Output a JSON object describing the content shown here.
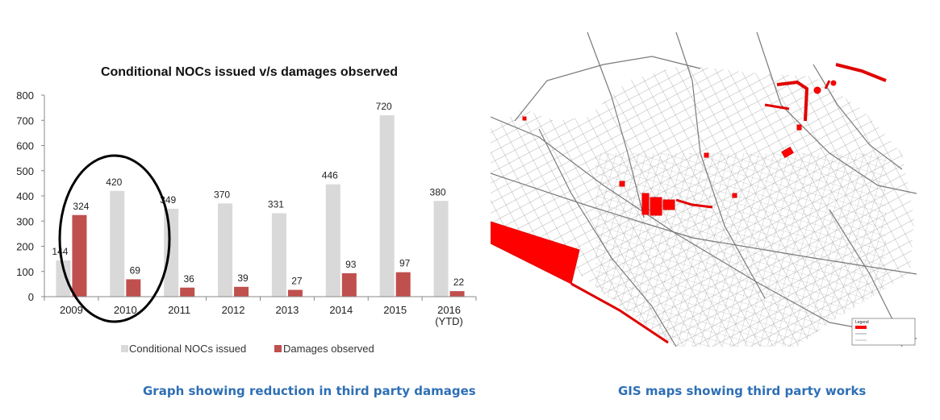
{
  "chart_data": {
    "type": "bar",
    "title": "Conditional NOCs issued v/s damages observed",
    "categories": [
      "2009",
      "2010",
      "2011",
      "2012",
      "2013",
      "2014",
      "2015",
      "2016\n(YTD)"
    ],
    "series": [
      {
        "name": "Conditional NOCs issued",
        "values": [
          144,
          420,
          349,
          370,
          331,
          446,
          720,
          380
        ],
        "color": "#d9d9d9"
      },
      {
        "name": "Damages observed",
        "values": [
          324,
          69,
          36,
          39,
          27,
          93,
          97,
          22
        ],
        "color": "#c0504d"
      }
    ],
    "ylim": [
      0,
      800
    ],
    "yticks": [
      0,
      100,
      200,
      300,
      400,
      500,
      600,
      700,
      800
    ],
    "grid": false,
    "legend_position": "bottom",
    "annotation": "circle around 2009 and 2010"
  },
  "captions": {
    "chart": "Graph showing reduction in third party damages",
    "map": "GIS maps showing third party works"
  },
  "map": {
    "legend_title": "Legend",
    "highlight_color": "#ff0000",
    "line_color": "#8a8a8a"
  }
}
